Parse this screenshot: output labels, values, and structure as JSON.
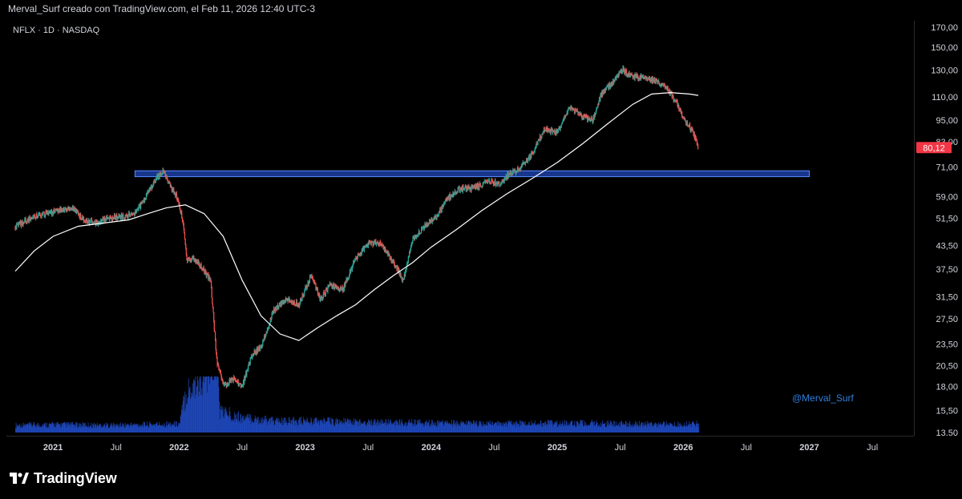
{
  "header": {
    "title": "Merval_Surf creado con TradingView.com, el Feb 11, 2026 12:40 UTC-3"
  },
  "symbol": {
    "label": "NFLX · 1D · NASDAQ"
  },
  "watermark": {
    "text": "@Merval_Surf"
  },
  "brand": {
    "name": "TradingView",
    "icon": "tradingview-logo-icon"
  },
  "colors": {
    "background": "#000000",
    "up": "#26a69a",
    "down": "#ef5350",
    "ma_line": "#ffffff",
    "zone_fill": "#2962ff",
    "price_label": "#f23645",
    "volume": "#2962ff"
  },
  "chart_data": {
    "type": "line",
    "symbol": "NFLX",
    "timeframe": "1D",
    "exchange": "NASDAQ",
    "y_scale": "log",
    "ylim": [
      13.5,
      170
    ],
    "price_ticks": [
      "170,00",
      "150,00",
      "130,00",
      "110,00",
      "95,00",
      "83,00",
      "71,00",
      "59,00",
      "51,50",
      "43,50",
      "37,50",
      "31,50",
      "27,50",
      "23,50",
      "20,50",
      "18,00",
      "15,50",
      "13,50"
    ],
    "x_ticks": [
      {
        "label": "2021",
        "t": 2021.0,
        "year": true
      },
      {
        "label": "Jul",
        "t": 2021.5,
        "year": false
      },
      {
        "label": "2022",
        "t": 2022.0,
        "year": true
      },
      {
        "label": "Jul",
        "t": 2022.5,
        "year": false
      },
      {
        "label": "2023",
        "t": 2023.0,
        "year": true
      },
      {
        "label": "Jul",
        "t": 2023.5,
        "year": false
      },
      {
        "label": "2024",
        "t": 2024.0,
        "year": true
      },
      {
        "label": "Jul",
        "t": 2024.5,
        "year": false
      },
      {
        "label": "2025",
        "t": 2025.0,
        "year": true
      },
      {
        "label": "Jul",
        "t": 2025.5,
        "year": false
      },
      {
        "label": "2026",
        "t": 2026.0,
        "year": true
      },
      {
        "label": "Jul",
        "t": 2026.5,
        "year": false
      },
      {
        "label": "2027",
        "t": 2027.0,
        "year": true
      },
      {
        "label": "Jul",
        "t": 2027.5,
        "year": false
      }
    ],
    "last_price": {
      "label": "80,12",
      "value": 80.12
    },
    "price_series": [
      [
        2020.7,
        49
      ],
      [
        2020.85,
        52
      ],
      [
        2020.95,
        53
      ],
      [
        2021.05,
        54
      ],
      [
        2021.15,
        55
      ],
      [
        2021.25,
        51
      ],
      [
        2021.35,
        50
      ],
      [
        2021.45,
        52
      ],
      [
        2021.55,
        52
      ],
      [
        2021.65,
        53
      ],
      [
        2021.75,
        60
      ],
      [
        2021.83,
        67
      ],
      [
        2021.88,
        69
      ],
      [
        2021.93,
        63
      ],
      [
        2021.98,
        59
      ],
      [
        2022.03,
        51
      ],
      [
        2022.06,
        40
      ],
      [
        2022.12,
        40
      ],
      [
        2022.18,
        38
      ],
      [
        2022.25,
        35
      ],
      [
        2022.3,
        21
      ],
      [
        2022.36,
        18
      ],
      [
        2022.42,
        19
      ],
      [
        2022.5,
        18
      ],
      [
        2022.58,
        22
      ],
      [
        2022.65,
        23
      ],
      [
        2022.75,
        29
      ],
      [
        2022.85,
        31
      ],
      [
        2022.95,
        30
      ],
      [
        2023.05,
        36
      ],
      [
        2023.12,
        31
      ],
      [
        2023.2,
        34
      ],
      [
        2023.3,
        33
      ],
      [
        2023.4,
        40
      ],
      [
        2023.5,
        44
      ],
      [
        2023.6,
        44
      ],
      [
        2023.68,
        40
      ],
      [
        2023.78,
        35
      ],
      [
        2023.85,
        45
      ],
      [
        2023.95,
        49
      ],
      [
        2024.05,
        52
      ],
      [
        2024.12,
        58
      ],
      [
        2024.22,
        62
      ],
      [
        2024.3,
        62
      ],
      [
        2024.38,
        63
      ],
      [
        2024.45,
        65
      ],
      [
        2024.55,
        64
      ],
      [
        2024.62,
        68
      ],
      [
        2024.7,
        70
      ],
      [
        2024.8,
        77
      ],
      [
        2024.9,
        90
      ],
      [
        2025.0,
        88
      ],
      [
        2025.1,
        103
      ],
      [
        2025.2,
        97
      ],
      [
        2025.28,
        95
      ],
      [
        2025.35,
        112
      ],
      [
        2025.45,
        121
      ],
      [
        2025.52,
        130
      ],
      [
        2025.6,
        125
      ],
      [
        2025.7,
        124
      ],
      [
        2025.78,
        122
      ],
      [
        2025.85,
        118
      ],
      [
        2025.92,
        110
      ],
      [
        2026.0,
        97
      ],
      [
        2026.08,
        88
      ],
      [
        2026.12,
        80.12
      ]
    ],
    "ma_series": [
      [
        2020.7,
        37
      ],
      [
        2020.85,
        42
      ],
      [
        2021.0,
        46
      ],
      [
        2021.2,
        49
      ],
      [
        2021.4,
        50
      ],
      [
        2021.6,
        51
      ],
      [
        2021.75,
        53
      ],
      [
        2021.9,
        55
      ],
      [
        2022.05,
        56
      ],
      [
        2022.2,
        53
      ],
      [
        2022.35,
        46
      ],
      [
        2022.5,
        35
      ],
      [
        2022.65,
        28
      ],
      [
        2022.8,
        25
      ],
      [
        2022.95,
        24
      ],
      [
        2023.1,
        26
      ],
      [
        2023.25,
        28
      ],
      [
        2023.4,
        30
      ],
      [
        2023.55,
        33
      ],
      [
        2023.7,
        36
      ],
      [
        2023.85,
        39
      ],
      [
        2024.0,
        43
      ],
      [
        2024.2,
        48
      ],
      [
        2024.4,
        54
      ],
      [
        2024.6,
        60
      ],
      [
        2024.8,
        66
      ],
      [
        2025.0,
        73
      ],
      [
        2025.2,
        82
      ],
      [
        2025.4,
        93
      ],
      [
        2025.6,
        105
      ],
      [
        2025.75,
        112
      ],
      [
        2025.9,
        113
      ],
      [
        2026.05,
        112
      ],
      [
        2026.12,
        111
      ]
    ],
    "zone": {
      "t_start": 2021.65,
      "t_end": 2027.0,
      "low": 66.8,
      "high": 69.3
    },
    "volume_series": [
      [
        2020.7,
        1
      ],
      [
        2021.0,
        1.1
      ],
      [
        2021.5,
        1
      ],
      [
        2022.0,
        1.2
      ],
      [
        2022.05,
        5.5
      ],
      [
        2022.3,
        10
      ],
      [
        2022.32,
        3
      ],
      [
        2022.5,
        2
      ],
      [
        2022.8,
        1.5
      ],
      [
        2023.0,
        1.6
      ],
      [
        2023.5,
        1.4
      ],
      [
        2024.0,
        1.3
      ],
      [
        2024.5,
        1.2
      ],
      [
        2025.0,
        1.3
      ],
      [
        2025.5,
        1.2
      ],
      [
        2026.0,
        1.1
      ],
      [
        2026.12,
        1.2
      ]
    ]
  }
}
